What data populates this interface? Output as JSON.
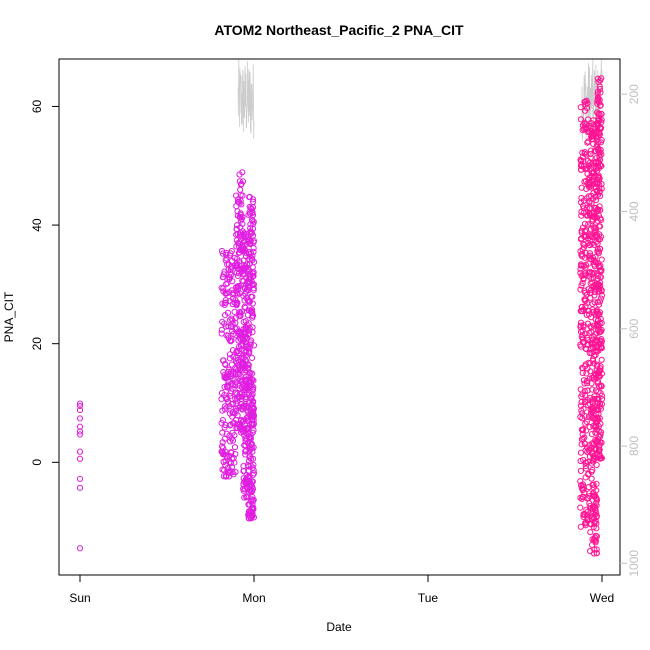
{
  "chart_data": {
    "type": "scatter",
    "title": "ATOM2 Northeast_Pacific_2 PNA_CIT",
    "xlabel": "Date",
    "ylabel": "PNA_CIT",
    "x_ticks": [
      "Sun",
      "Mon",
      "Tue",
      "Wed"
    ],
    "y_ticks": [
      0,
      20,
      40,
      60
    ],
    "y2_ticks": [
      200,
      400,
      600,
      800,
      1000
    ],
    "y_range": [
      -19,
      68
    ],
    "y2_range": [
      1020,
      140
    ],
    "y2_reversed": true,
    "grid": false,
    "series": [
      {
        "color": "#e01ee0",
        "points": [
          [
            "Sun",
            -14.5
          ],
          [
            "Sun",
            -4.3
          ],
          [
            "Sun",
            -2.8
          ],
          [
            "Sun",
            0.6
          ],
          [
            "Sun",
            1.8
          ],
          [
            "Sun",
            4.7
          ],
          [
            "Sun",
            5.2
          ],
          [
            "Sun",
            6.0
          ],
          [
            "Sun",
            7.4
          ],
          [
            "Sun",
            8.8
          ],
          [
            "Sun",
            9.5
          ],
          [
            "Sun",
            9.9
          ]
        ],
        "clusters": [
          {
            "from": "Sun+19.5h",
            "to": "Sun+21.5h",
            "y_min": -2.5,
            "y_max": 36,
            "n": 200
          },
          {
            "from": "Sun+21.5h",
            "to": "Sun+22.5h",
            "y_min": 5,
            "y_max": 49,
            "n": 180
          },
          {
            "from": "Sun+22.5h",
            "to": "Sun+23.2h",
            "y_min": -6,
            "y_max": 40,
            "n": 160
          },
          {
            "from": "Sun+23.2h",
            "to": "Mon+0h",
            "y_min": -9.5,
            "y_max": 45,
            "n": 240
          }
        ]
      },
      {
        "color": "#ff1493",
        "clusters": [
          {
            "from": "Tue+21h",
            "to": "Tue+22.3h",
            "y_min": -11,
            "y_max": 61,
            "n": 260
          },
          {
            "from": "Tue+22.3h",
            "to": "Tue+23.3h",
            "y_min": -15.5,
            "y_max": 58,
            "n": 300
          },
          {
            "from": "Tue+23.3h",
            "to": "Wed+0h",
            "y_min": 0.5,
            "y_max": 65,
            "n": 240
          }
        ]
      }
    ],
    "pressure_trace": {
      "color": "#cccccc",
      "segments": [
        {
          "from": "Sun+21.8h",
          "to": "Mon+0h",
          "y2_min": 280,
          "y2_max": 140
        },
        {
          "from": "Tue+21.2h",
          "to": "Wed+0h",
          "y2_min": 280,
          "y2_max": 140
        }
      ]
    }
  }
}
